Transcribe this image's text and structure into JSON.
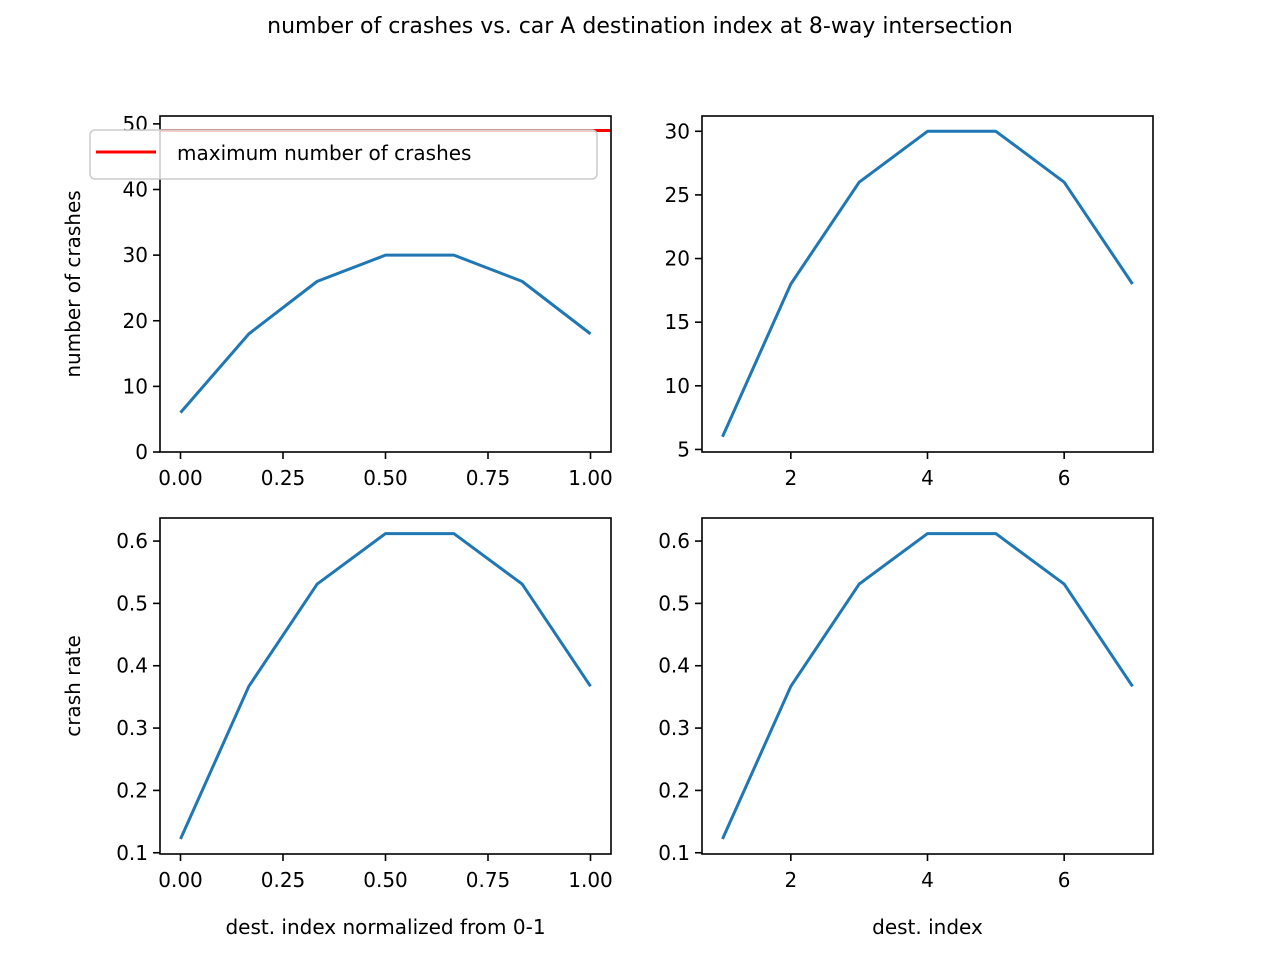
{
  "title": "number of crashes vs. car A destination index at 8-way intersection",
  "colors": {
    "series": "#1f77b4",
    "max_line": "#ff0000",
    "axes": "#000000",
    "background": "#ffffff"
  },
  "chart_data": [
    {
      "type": "line",
      "position": "top-left",
      "title": "",
      "xlabel": "",
      "ylabel": "number of crashes",
      "x": [
        0.0,
        0.1667,
        0.3333,
        0.5,
        0.6667,
        0.8333,
        1.0
      ],
      "series": [
        {
          "name": "crashes",
          "values": [
            6,
            18,
            26,
            30,
            30,
            26,
            18
          ],
          "color": "#1f77b4"
        },
        {
          "name": "maximum number of crashes",
          "values": [
            49,
            49,
            49,
            49,
            49,
            49,
            49
          ],
          "color": "#ff0000"
        }
      ],
      "xlim": [
        -0.05,
        1.05
      ],
      "ylim": [
        0,
        51.2
      ],
      "xticks": [
        "0.00",
        "0.25",
        "0.50",
        "0.75",
        "1.00"
      ],
      "yticks": [
        "0",
        "10",
        "20",
        "30",
        "40",
        "50"
      ],
      "legend": {
        "entries": [
          "maximum number of crashes"
        ],
        "position": "upper left"
      },
      "grid": false
    },
    {
      "type": "line",
      "position": "top-right",
      "title": "",
      "xlabel": "",
      "ylabel": "",
      "x": [
        1,
        2,
        3,
        4,
        5,
        6,
        7
      ],
      "series": [
        {
          "name": "crashes",
          "values": [
            6,
            18,
            26,
            30,
            30,
            26,
            18
          ],
          "color": "#1f77b4"
        }
      ],
      "xlim": [
        0.7,
        7.3
      ],
      "ylim": [
        4.8,
        31.2
      ],
      "xticks": [
        "2",
        "4",
        "6"
      ],
      "yticks": [
        "5",
        "10",
        "15",
        "20",
        "25",
        "30"
      ],
      "grid": false
    },
    {
      "type": "line",
      "position": "bottom-left",
      "title": "",
      "xlabel": "dest. index normalized from 0-1",
      "ylabel": "crash rate",
      "x": [
        0.0,
        0.1667,
        0.3333,
        0.5,
        0.6667,
        0.8333,
        1.0
      ],
      "series": [
        {
          "name": "crash rate",
          "values": [
            0.122,
            0.367,
            0.531,
            0.612,
            0.612,
            0.531,
            0.367
          ],
          "color": "#1f77b4"
        }
      ],
      "xlim": [
        -0.05,
        1.05
      ],
      "ylim": [
        0.098,
        0.637
      ],
      "xticks": [
        "0.00",
        "0.25",
        "0.50",
        "0.75",
        "1.00"
      ],
      "yticks": [
        "0.1",
        "0.2",
        "0.3",
        "0.4",
        "0.5",
        "0.6"
      ],
      "grid": false
    },
    {
      "type": "line",
      "position": "bottom-right",
      "title": "",
      "xlabel": "dest. index",
      "ylabel": "",
      "x": [
        1,
        2,
        3,
        4,
        5,
        6,
        7
      ],
      "series": [
        {
          "name": "crash rate",
          "values": [
            0.122,
            0.367,
            0.531,
            0.612,
            0.612,
            0.531,
            0.367
          ],
          "color": "#1f77b4"
        }
      ],
      "xlim": [
        0.7,
        7.3
      ],
      "ylim": [
        0.098,
        0.637
      ],
      "xticks": [
        "2",
        "4",
        "6"
      ],
      "yticks": [
        "0.1",
        "0.2",
        "0.3",
        "0.4",
        "0.5",
        "0.6"
      ],
      "grid": false
    }
  ]
}
